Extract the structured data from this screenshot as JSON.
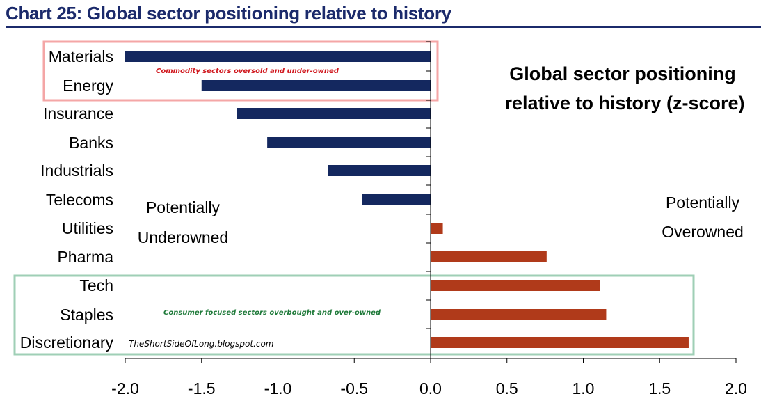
{
  "header": {
    "title": "Chart 25: Global sector positioning relative to history"
  },
  "chart_data": {
    "type": "bar",
    "orientation": "horizontal",
    "title": "Global sector positioning relative to history (z-score)",
    "title_lines": [
      "Global sector positioning",
      "relative to history (z-score)"
    ],
    "categories": [
      "Materials",
      "Energy",
      "Insurance",
      "Banks",
      "Industrials",
      "Telecoms",
      "Utilities",
      "Pharma",
      "Tech",
      "Staples",
      "Discretionary"
    ],
    "values": [
      -2.0,
      -1.5,
      -1.27,
      -1.07,
      -0.67,
      -0.45,
      0.08,
      0.76,
      1.11,
      1.15,
      1.69
    ],
    "xlim": [
      -2.0,
      2.0
    ],
    "x_ticks": [
      "-2.0",
      "-1.5",
      "-1.0",
      "-0.5",
      "0.0",
      "0.5",
      "1.0",
      "1.5",
      "2.0"
    ],
    "colors": {
      "negative": "#14285f",
      "positive": "#b03a1a"
    },
    "grid": false,
    "annotations": {
      "left_label": [
        "Potentially",
        "Underowned"
      ],
      "right_label": [
        "Potentially",
        "Overowned"
      ],
      "commodity_note": "Commodity sectors oversold and under-owned",
      "consumer_note": "Consumer focused sectors overbought and over-owned",
      "source": "TheShortSideOfLong.blogspot.com"
    },
    "highlight_colors": {
      "commodity_box": "#f4a6a6",
      "consumer_box": "#9fcfb6",
      "commodity_text": "#d0181e",
      "consumer_text": "#1f7a3a"
    }
  }
}
